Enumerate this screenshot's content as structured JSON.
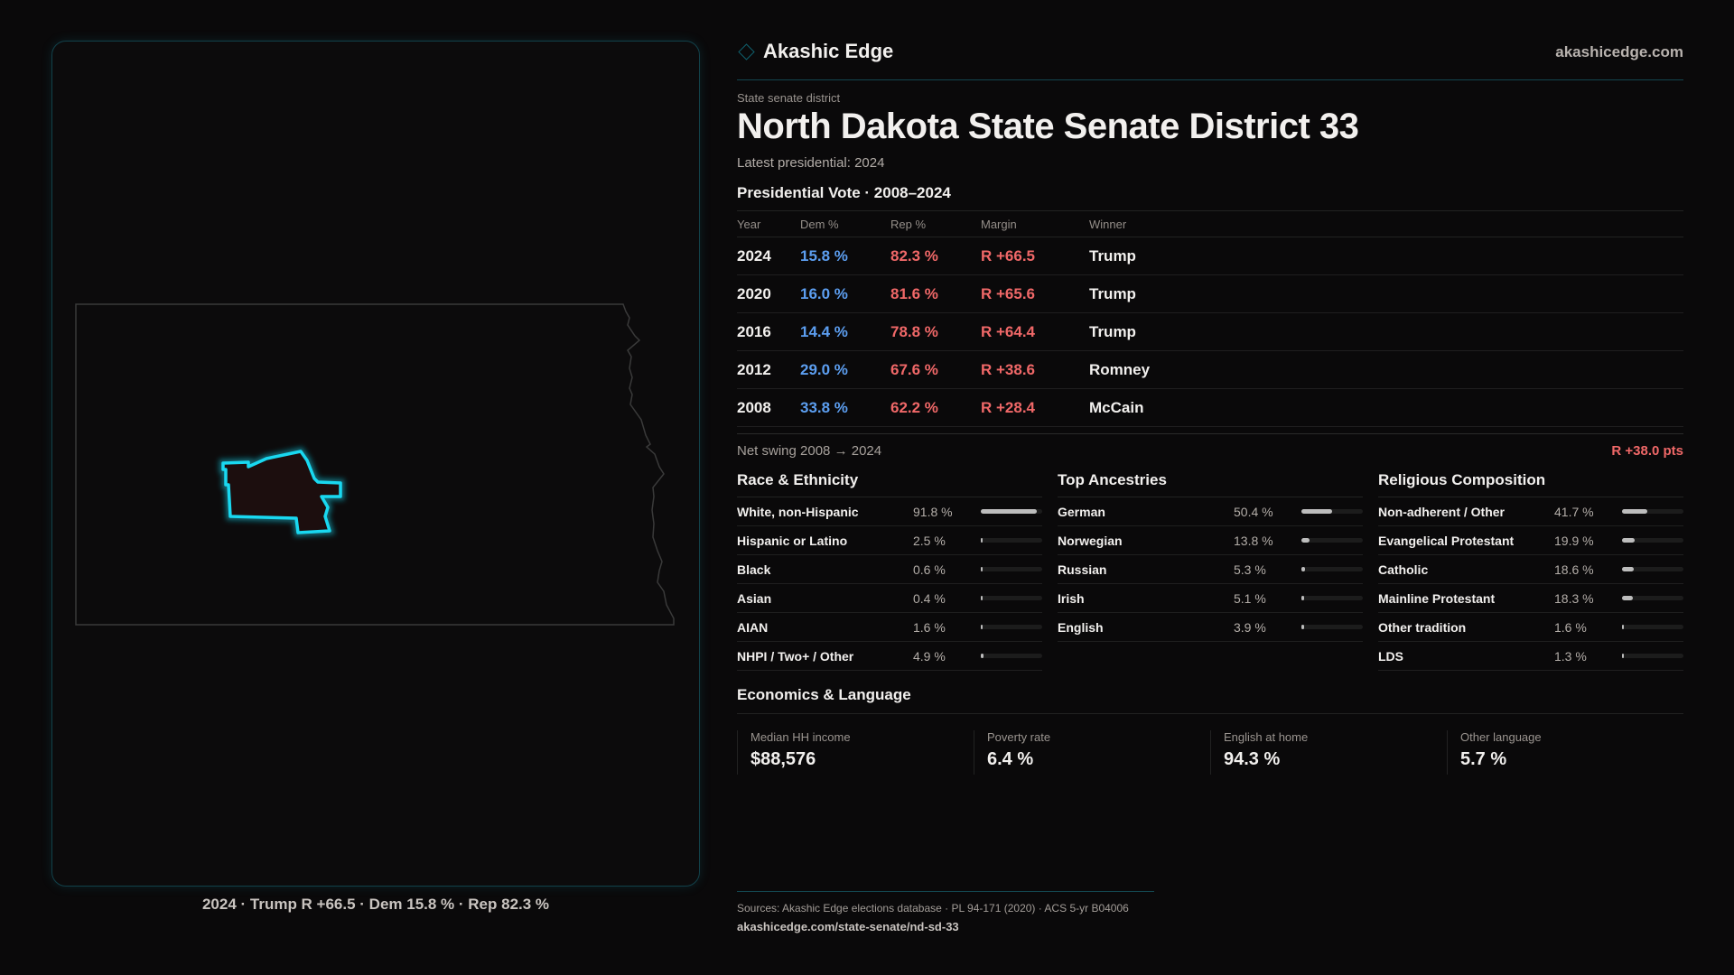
{
  "brand": {
    "name": "Akashic Edge",
    "site": "akashicedge.com"
  },
  "kicker": "State senate district",
  "title": "North Dakota State Senate District 33",
  "latest": "Latest presidential: 2024",
  "map_caption": "2024 · Trump R +66.5 · Dem 15.8 % · Rep 82.3 %",
  "presidential": {
    "heading": "Presidential Vote · 2008–2024",
    "columns": [
      "Year",
      "Dem %",
      "Rep %",
      "Margin",
      "Winner"
    ],
    "rows": [
      {
        "year": "2024",
        "dem": "15.8 %",
        "rep": "82.3 %",
        "margin": "R +66.5",
        "winner": "Trump"
      },
      {
        "year": "2020",
        "dem": "16.0 %",
        "rep": "81.6 %",
        "margin": "R +65.6",
        "winner": "Trump"
      },
      {
        "year": "2016",
        "dem": "14.4 %",
        "rep": "78.8 %",
        "margin": "R +64.4",
        "winner": "Trump"
      },
      {
        "year": "2012",
        "dem": "29.0 %",
        "rep": "67.6 %",
        "margin": "R +38.6",
        "winner": "Romney"
      },
      {
        "year": "2008",
        "dem": "33.8 %",
        "rep": "62.2 %",
        "margin": "R +28.4",
        "winner": "McCain"
      }
    ]
  },
  "swing": {
    "label": "Net swing 2008 → 2024",
    "value": "R +38.0 pts"
  },
  "groups": [
    {
      "heading": "Race & Ethnicity",
      "items": [
        {
          "label": "White, non-Hispanic",
          "pct": "91.8 %",
          "value": 91.8
        },
        {
          "label": "Hispanic or Latino",
          "pct": "2.5 %",
          "value": 2.5
        },
        {
          "label": "Black",
          "pct": "0.6 %",
          "value": 0.6
        },
        {
          "label": "Asian",
          "pct": "0.4 %",
          "value": 0.4
        },
        {
          "label": "AIAN",
          "pct": "1.6 %",
          "value": 1.6
        },
        {
          "label": "NHPI / Two+ / Other",
          "pct": "4.9 %",
          "value": 4.9
        }
      ]
    },
    {
      "heading": "Top Ancestries",
      "items": [
        {
          "label": "German",
          "pct": "50.4 %",
          "value": 50.4
        },
        {
          "label": "Norwegian",
          "pct": "13.8 %",
          "value": 13.8
        },
        {
          "label": "Russian",
          "pct": "5.3 %",
          "value": 5.3
        },
        {
          "label": "Irish",
          "pct": "5.1 %",
          "value": 5.1
        },
        {
          "label": "English",
          "pct": "3.9 %",
          "value": 3.9
        }
      ]
    },
    {
      "heading": "Religious Composition",
      "items": [
        {
          "label": "Non-adherent / Other",
          "pct": "41.7 %",
          "value": 41.7
        },
        {
          "label": "Evangelical Protestant",
          "pct": "19.9 %",
          "value": 19.9
        },
        {
          "label": "Catholic",
          "pct": "18.6 %",
          "value": 18.6
        },
        {
          "label": "Mainline Protestant",
          "pct": "18.3 %",
          "value": 18.3
        },
        {
          "label": "Other tradition",
          "pct": "1.6 %",
          "value": 1.6
        },
        {
          "label": "LDS",
          "pct": "1.3 %",
          "value": 1.3
        }
      ]
    }
  ],
  "economics": {
    "heading": "Economics & Language",
    "cards": [
      {
        "label": "Median HH income",
        "value": "$88,576"
      },
      {
        "label": "Poverty rate",
        "value": "6.4 %"
      },
      {
        "label": "English at home",
        "value": "94.3 %"
      },
      {
        "label": "Other language",
        "value": "5.7 %"
      }
    ]
  },
  "footer": {
    "sources": "Sources: Akashic Edge elections database · PL 94-171 (2020) · ACS 5-yr B04006",
    "url": "akashicedge.com/state-senate/nd-sd-33"
  },
  "colors": {
    "dem": "#5c9ef0",
    "rep": "#f06868",
    "accent": "#19d8f0"
  }
}
